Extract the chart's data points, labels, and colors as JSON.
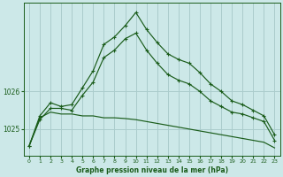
{
  "title": "Graphe pression niveau de la mer (hPa)",
  "bg_color": "#cce8e8",
  "grid_color": "#aacccc",
  "line_color": "#1a5c1a",
  "xlim": [
    -0.5,
    23.5
  ],
  "ylim": [
    1024.3,
    1028.35
  ],
  "yticks": [
    1025,
    1026
  ],
  "xticks": [
    0,
    1,
    2,
    3,
    4,
    5,
    6,
    7,
    8,
    9,
    10,
    11,
    12,
    13,
    14,
    15,
    16,
    17,
    18,
    19,
    20,
    21,
    22,
    23
  ],
  "series_peak": {
    "x": [
      0,
      1,
      2,
      3,
      4,
      5,
      6,
      7,
      8,
      9,
      10,
      11,
      12,
      13,
      14,
      15,
      16,
      17,
      18,
      19,
      20,
      21,
      22,
      23
    ],
    "y": [
      1024.55,
      1025.35,
      1025.7,
      1025.6,
      1025.65,
      1026.1,
      1026.55,
      1027.25,
      1027.45,
      1027.75,
      1028.1,
      1027.65,
      1027.3,
      1027.0,
      1026.85,
      1026.75,
      1026.5,
      1026.2,
      1026.0,
      1025.75,
      1025.65,
      1025.5,
      1025.35,
      1024.85
    ]
  },
  "series_mid": {
    "x": [
      0,
      1,
      2,
      3,
      4,
      5,
      6,
      7,
      8,
      9,
      10,
      11,
      12,
      13,
      14,
      15,
      16,
      17,
      18,
      19,
      20,
      21,
      22,
      23
    ],
    "y": [
      1024.55,
      1025.25,
      1025.55,
      1025.55,
      1025.5,
      1025.9,
      1026.25,
      1026.9,
      1027.1,
      1027.4,
      1027.55,
      1027.1,
      1026.75,
      1026.45,
      1026.3,
      1026.2,
      1026.0,
      1025.75,
      1025.6,
      1025.45,
      1025.4,
      1025.3,
      1025.2,
      1024.7
    ]
  },
  "series_flat": {
    "x": [
      0,
      1,
      2,
      3,
      4,
      5,
      6,
      7,
      8,
      9,
      10,
      11,
      12,
      13,
      14,
      15,
      16,
      17,
      18,
      19,
      20,
      21,
      22,
      23
    ],
    "y": [
      1024.55,
      1025.3,
      1025.45,
      1025.4,
      1025.4,
      1025.35,
      1025.35,
      1025.3,
      1025.3,
      1025.28,
      1025.25,
      1025.2,
      1025.15,
      1025.1,
      1025.05,
      1025.0,
      1024.95,
      1024.9,
      1024.85,
      1024.8,
      1024.75,
      1024.7,
      1024.65,
      1024.5
    ]
  }
}
